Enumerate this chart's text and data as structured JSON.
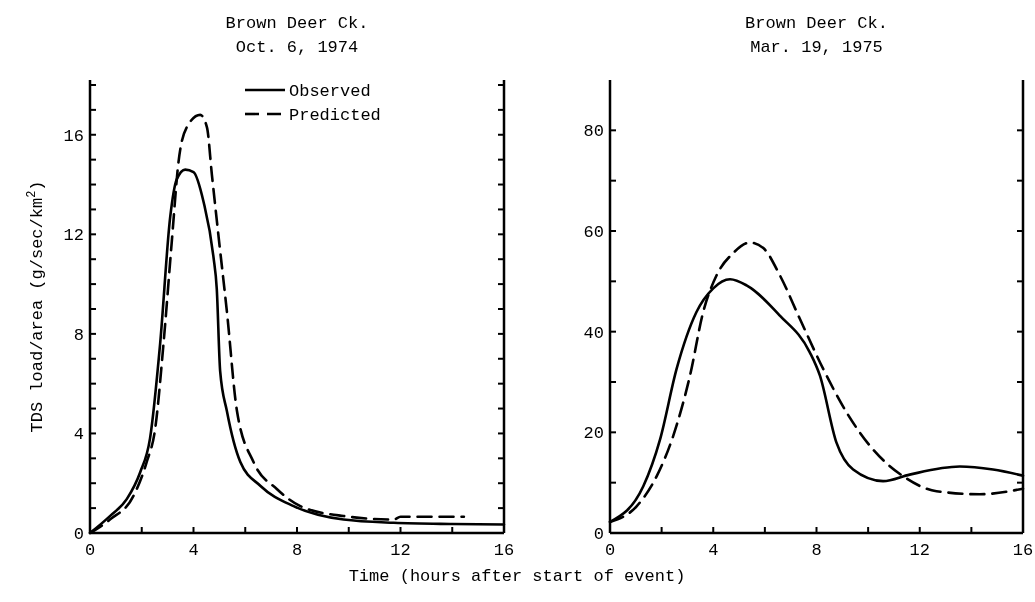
{
  "chart_data": [
    {
      "type": "line",
      "title": "Brown Deer Ck.",
      "subtitle": "Oct. 6, 1974",
      "ylabel": "TDS load/area (g/sec/km$^{2}$)",
      "legend": "top right",
      "grid": false,
      "marker": "none",
      "xlim": [
        0,
        16
      ],
      "ylim": [
        0,
        18.2
      ],
      "xticks": [
        0,
        {
          "value": 2,
          "label": null
        },
        4,
        {
          "value": 6,
          "label": null
        },
        8,
        {
          "value": 10,
          "label": null
        },
        12,
        {
          "value": 14,
          "label": null
        },
        16
      ],
      "yticks": [
        0,
        {
          "value": 1,
          "label": null
        },
        {
          "value": 2,
          "label": null
        },
        {
          "value": 3,
          "label": null
        },
        4,
        {
          "value": 5,
          "label": null
        },
        {
          "value": 6,
          "label": null
        },
        {
          "value": 7,
          "label": null
        },
        8,
        {
          "value": 9,
          "label": null
        },
        {
          "value": 10,
          "label": null
        },
        {
          "value": 11,
          "label": null
        },
        12,
        {
          "value": 13,
          "label": null
        },
        {
          "value": 14,
          "label": null
        },
        {
          "value": 15,
          "label": null
        },
        16,
        {
          "value": 17,
          "label": null
        },
        {
          "value": 18,
          "label": null
        }
      ],
      "series": [
        {
          "name": "Observed",
          "color": "#000000",
          "line_style": "solid",
          "x": [
            0,
            0.77,
            1.42,
            1.94,
            2.32,
            2.71,
            3.1,
            3.35,
            3.68,
            4.0,
            4.39,
            4.77,
            4.9,
            5.03,
            5.29,
            5.81,
            6.58,
            7.87,
            9.8,
            11.74,
            14,
            16
          ],
          "values": [
            0,
            0.68,
            1.36,
            2.44,
            3.8,
            7.6,
            12.7,
            14.2,
            14.6,
            14.5,
            13.3,
            11.1,
            9.8,
            6.5,
            4.9,
            2.85,
            1.9,
            1.08,
            0.54,
            0.41,
            0.36,
            0.34
          ]
        },
        {
          "name": "Predicted",
          "color": "#000000",
          "line_style": "dashed",
          "x": [
            0,
            0.77,
            1.68,
            2.19,
            2.52,
            2.84,
            3.16,
            3.42,
            3.74,
            4.26,
            4.52,
            4.71,
            4.97,
            5.29,
            5.68,
            6.32,
            7.23,
            8.13,
            9.8,
            11.74,
            12.0,
            14.45
          ],
          "values": [
            0,
            0.54,
            1.49,
            2.85,
            4.2,
            7.6,
            11.7,
            14.9,
            16.3,
            16.8,
            16.3,
            14.4,
            11.9,
            8.9,
            4.9,
            2.85,
            1.76,
            1.08,
            0.68,
            0.54,
            0.65,
            0.65
          ]
        }
      ]
    },
    {
      "type": "line",
      "title": "Brown Deer Ck.",
      "subtitle": "Mar. 19, 1975",
      "xlabel": "Time (hours after start of event)",
      "grid": false,
      "marker": "none",
      "xlim": [
        0,
        16
      ],
      "ylim": [
        0,
        90
      ],
      "xticks": [
        0,
        {
          "value": 2,
          "label": null
        },
        4,
        {
          "value": 6,
          "label": null
        },
        8,
        {
          "value": 10,
          "label": null
        },
        12,
        {
          "value": 14,
          "label": null
        },
        16
      ],
      "yticks": [
        0,
        {
          "value": 10,
          "label": null
        },
        20,
        {
          "value": 30,
          "label": null
        },
        40,
        {
          "value": 50,
          "label": null
        },
        60,
        {
          "value": 70,
          "label": null
        },
        80
      ],
      "series": [
        {
          "color": "#000000",
          "line_style": "solid",
          "x": [
            0,
            1.29,
            1.94,
            2.58,
            3.35,
            4.0,
            4.65,
            5.29,
            6.58,
            7.74,
            8.13,
            8.77,
            9.42,
            10.58,
            11.61,
            13.55,
            14.84,
            16
          ],
          "values": [
            2.2,
            9.3,
            18.6,
            32.6,
            43.9,
            48.6,
            50.4,
            49.2,
            43.2,
            35.9,
            31.3,
            18.0,
            12.6,
            10.3,
            11.6,
            13.2,
            12.6,
            11.4
          ]
        },
        {
          "color": "#000000",
          "line_style": "dashed",
          "x": [
            0,
            1.03,
            1.81,
            2.45,
            3.1,
            3.61,
            4.13,
            4.77,
            5.42,
            5.94,
            6.58,
            7.35,
            8.26,
            9.16,
            10.19,
            11.35,
            12.65,
            14.32,
            16
          ],
          "values": [
            2.2,
            5.3,
            11.3,
            19.3,
            31.3,
            43.9,
            51.2,
            55.6,
            57.7,
            56.6,
            51.2,
            42.6,
            32.6,
            24.0,
            16.6,
            11.3,
            8.3,
            7.7,
            8.8
          ]
        }
      ]
    }
  ]
}
